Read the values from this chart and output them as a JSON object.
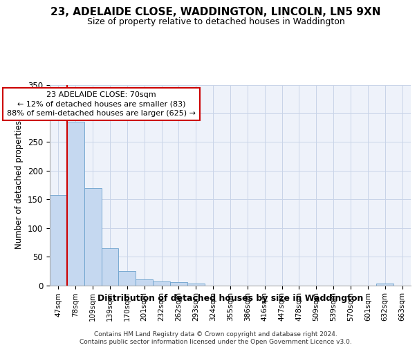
{
  "title": "23, ADELAIDE CLOSE, WADDINGTON, LINCOLN, LN5 9XN",
  "subtitle": "Size of property relative to detached houses in Waddington",
  "xlabel": "Distribution of detached houses by size in Waddington",
  "ylabel": "Number of detached properties",
  "categories": [
    "47sqm",
    "78sqm",
    "109sqm",
    "139sqm",
    "170sqm",
    "201sqm",
    "232sqm",
    "262sqm",
    "293sqm",
    "324sqm",
    "355sqm",
    "386sqm",
    "416sqm",
    "447sqm",
    "478sqm",
    "509sqm",
    "539sqm",
    "570sqm",
    "601sqm",
    "632sqm",
    "663sqm"
  ],
  "values": [
    157,
    286,
    170,
    65,
    25,
    10,
    7,
    5,
    3,
    0,
    0,
    0,
    0,
    0,
    0,
    0,
    0,
    0,
    0,
    3,
    0
  ],
  "bar_color": "#c5d8f0",
  "bar_edge_color": "#6aa0cc",
  "annotation_line_color": "#cc0000",
  "annotation_box_text": "23 ADELAIDE CLOSE: 70sqm\n← 12% of detached houses are smaller (83)\n88% of semi-detached houses are larger (625) →",
  "ylim": [
    0,
    350
  ],
  "yticks": [
    0,
    50,
    100,
    150,
    200,
    250,
    300,
    350
  ],
  "bg_color": "#eef2fa",
  "grid_color": "#c8d4e8",
  "footer_line1": "Contains HM Land Registry data © Crown copyright and database right 2024.",
  "footer_line2": "Contains public sector information licensed under the Open Government Licence v3.0."
}
